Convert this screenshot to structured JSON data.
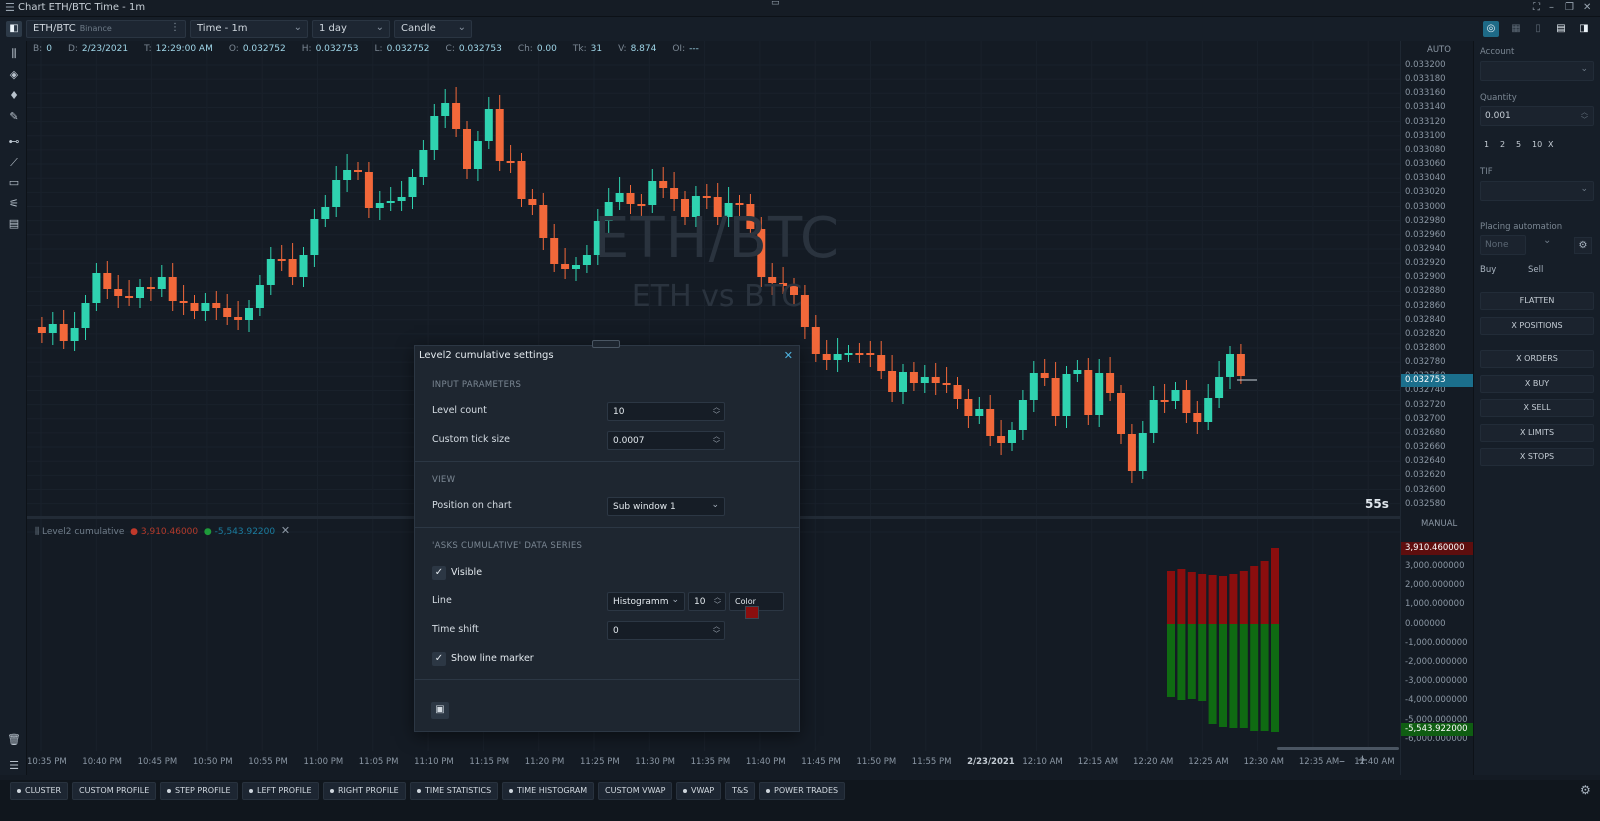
{
  "window": {
    "title": "Chart ETH/BTC Time - 1m"
  },
  "toolbar": {
    "symbol": "ETH/BTC",
    "exchange": "Binance",
    "aggregation": "Time - 1m",
    "range": "1 day",
    "chart_style": "Candle"
  },
  "infobar": [
    {
      "key": "B:",
      "val": "0"
    },
    {
      "key": "D:",
      "val": "2/23/2021"
    },
    {
      "key": "T:",
      "val": "12:29:00 AM"
    },
    {
      "key": "O:",
      "val": "0.032752"
    },
    {
      "key": "H:",
      "val": "0.032753"
    },
    {
      "key": "L:",
      "val": "0.032752"
    },
    {
      "key": "C:",
      "val": "0.032753"
    },
    {
      "key": "Ch:",
      "val": "0.00"
    },
    {
      "key": "Tk:",
      "val": "31"
    },
    {
      "key": "V:",
      "val": "8.874"
    },
    {
      "key": "OI:",
      "val": "---"
    }
  ],
  "watermark": {
    "line1": "ETH/BTC",
    "line2": "ETH vs BTC"
  },
  "countdown": "55s",
  "price_scale": {
    "mode_top": "AUTO",
    "mode_bottom": "MANUAL",
    "ticks": [
      "0.033200",
      "0.033180",
      "0.033160",
      "0.033140",
      "0.033120",
      "0.033100",
      "0.033080",
      "0.033060",
      "0.033040",
      "0.033020",
      "0.033000",
      "0.032980",
      "0.032960",
      "0.032940",
      "0.032920",
      "0.032900",
      "0.032880",
      "0.032860",
      "0.032840",
      "0.032820",
      "0.032800",
      "0.032780",
      "0.032760",
      "0.032740",
      "0.032720",
      "0.032700",
      "0.032680",
      "0.032660",
      "0.032640",
      "0.032620",
      "0.032600",
      "0.032580"
    ],
    "current_price": "0.032753",
    "sub_ticks": [
      "3,000.000000",
      "2,000.000000",
      "1,000.000000",
      "0.000000",
      "-1,000.000000",
      "-2,000.000000",
      "-3,000.000000",
      "-4,000.000000",
      "-5,000.000000",
      "-6,000.000000"
    ],
    "sub_top_label": "3,910.460000",
    "sub_bottom_label": "-5,543.922000"
  },
  "subwindow": {
    "name": "Level2 cumulative",
    "asks_value": "3,910.46000",
    "bids_value": "-5,543.92200"
  },
  "time_axis": [
    "10:35 PM",
    "10:40 PM",
    "10:45 PM",
    "10:50 PM",
    "10:55 PM",
    "11:00 PM",
    "11:05 PM",
    "11:10 PM",
    "11:15 PM",
    "11:20 PM",
    "11:25 PM",
    "11:30 PM",
    "11:35 PM",
    "11:40 PM",
    "11:45 PM",
    "11:50 PM",
    "11:55 PM",
    "2/23/2021",
    "12:10 AM",
    "12:15 AM",
    "12:20 AM",
    "12:25 AM",
    "12:30 AM",
    "12:35 AM",
    "12:40 AM"
  ],
  "right_panel": {
    "account_label": "Account",
    "quantity_label": "Quantity",
    "quantity_value": "0.001",
    "quick_qty": [
      "1",
      "2",
      "5",
      "10",
      "X"
    ],
    "tif_label": "TIF",
    "automation_label": "Placing automation",
    "automation_value": "None",
    "buy_label": "Buy",
    "sell_label": "Sell",
    "buttons": [
      "FLATTEN",
      "X POSITIONS",
      "X ORDERS",
      "X BUY",
      "X SELL",
      "X LIMITS",
      "X STOPS"
    ]
  },
  "bottom_tabs": [
    "CLUSTER",
    "CUSTOM PROFILE",
    "STEP PROFILE",
    "LEFT PROFILE",
    "RIGHT PROFILE",
    "TIME STATISTICS",
    "TIME HISTOGRAM",
    "CUSTOM VWAP",
    "VWAP",
    "T&S",
    "POWER TRADES"
  ],
  "dialog": {
    "title": "Level2 cumulative settings",
    "section_input": "INPUT PARAMETERS",
    "level_count_label": "Level count",
    "level_count_value": "10",
    "tick_size_label": "Custom tick size",
    "tick_size_value": "0.0007",
    "section_view": "VIEW",
    "position_label": "Position on chart",
    "position_value": "Sub window 1",
    "section_series": "'ASKS CUMULATIVE' DATA SERIES",
    "visible_label": "Visible",
    "line_label": "Line",
    "line_type": "Histogramm",
    "line_width": "10",
    "color_label": "Color",
    "time_shift_label": "Time shift",
    "time_shift_value": "0",
    "marker_label": "Show line marker"
  },
  "colors": {
    "up": "#2fd3b0",
    "down": "#f2683a",
    "asks": "#8b0e0e",
    "bids": "#0f6b12",
    "accent": "#1b6f8c"
  }
}
